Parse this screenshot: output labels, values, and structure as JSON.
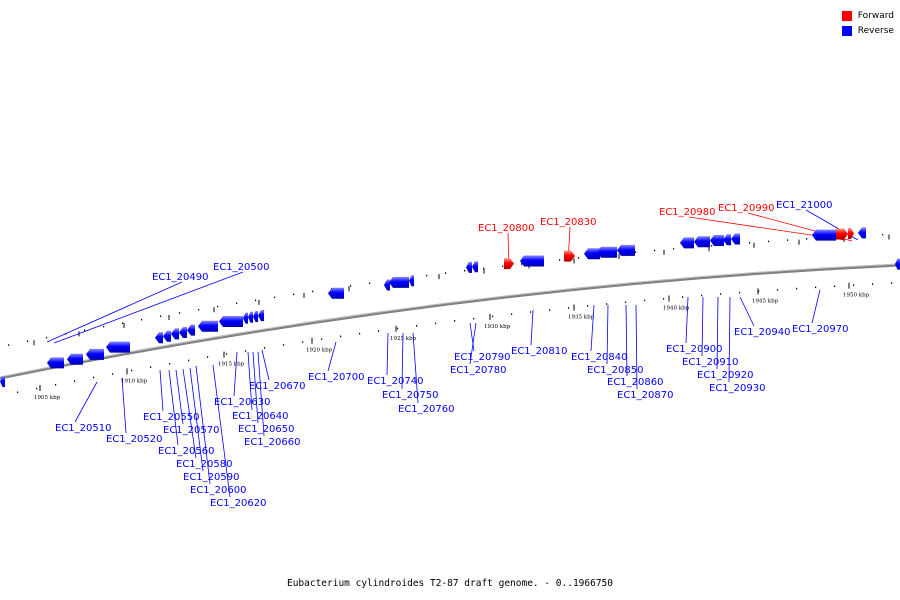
{
  "legend": [
    {
      "label": "Forward",
      "color": "#ff0000"
    },
    {
      "label": "Reverse",
      "color": "#0000ff"
    }
  ],
  "caption": "Eubacterium cylindroides T2-87 draft genome. - 0..1966750",
  "colors": {
    "forward": "#ff0000",
    "reverse": "#0000ff",
    "backbone": "#808080"
  },
  "ticks": [
    "1905 kbp",
    "1910 kbp",
    "1915 kbp",
    "1920 kbp",
    "1925 kbp",
    "1930 kbp",
    "1935 kbp",
    "1940 kbp",
    "1945 kbp",
    "1950 kbp"
  ],
  "genes": [
    {
      "name": "EC1_20490",
      "strand": "reverse"
    },
    {
      "name": "EC1_20500",
      "strand": "reverse"
    },
    {
      "name": "EC1_20510",
      "strand": "reverse"
    },
    {
      "name": "EC1_20520",
      "strand": "reverse"
    },
    {
      "name": "EC1_20550",
      "strand": "reverse"
    },
    {
      "name": "EC1_20560",
      "strand": "reverse"
    },
    {
      "name": "EC1_20570",
      "strand": "reverse"
    },
    {
      "name": "EC1_20580",
      "strand": "reverse"
    },
    {
      "name": "EC1_20590",
      "strand": "reverse"
    },
    {
      "name": "EC1_20600",
      "strand": "reverse"
    },
    {
      "name": "EC1_20620",
      "strand": "reverse"
    },
    {
      "name": "EC1_20630",
      "strand": "reverse"
    },
    {
      "name": "EC1_20640",
      "strand": "reverse"
    },
    {
      "name": "EC1_20650",
      "strand": "reverse"
    },
    {
      "name": "EC1_20660",
      "strand": "reverse"
    },
    {
      "name": "EC1_20670",
      "strand": "reverse"
    },
    {
      "name": "EC1_20700",
      "strand": "reverse"
    },
    {
      "name": "EC1_20740",
      "strand": "reverse"
    },
    {
      "name": "EC1_20750",
      "strand": "reverse"
    },
    {
      "name": "EC1_20760",
      "strand": "reverse"
    },
    {
      "name": "EC1_20790",
      "strand": "reverse"
    },
    {
      "name": "EC1_20780",
      "strand": "reverse"
    },
    {
      "name": "EC1_20800",
      "strand": "forward"
    },
    {
      "name": "EC1_20810",
      "strand": "reverse"
    },
    {
      "name": "EC1_20830",
      "strand": "forward"
    },
    {
      "name": "EC1_20840",
      "strand": "reverse"
    },
    {
      "name": "EC1_20850",
      "strand": "reverse"
    },
    {
      "name": "EC1_20860",
      "strand": "reverse"
    },
    {
      "name": "EC1_20870",
      "strand": "reverse"
    },
    {
      "name": "EC1_20900",
      "strand": "reverse"
    },
    {
      "name": "EC1_20910",
      "strand": "reverse"
    },
    {
      "name": "EC1_20920",
      "strand": "reverse"
    },
    {
      "name": "EC1_20930",
      "strand": "reverse"
    },
    {
      "name": "EC1_20940",
      "strand": "reverse"
    },
    {
      "name": "EC1_20970",
      "strand": "reverse"
    },
    {
      "name": "EC1_20980",
      "strand": "forward"
    },
    {
      "name": "EC1_20990",
      "strand": "forward"
    },
    {
      "name": "EC1_21000",
      "strand": "reverse"
    }
  ]
}
